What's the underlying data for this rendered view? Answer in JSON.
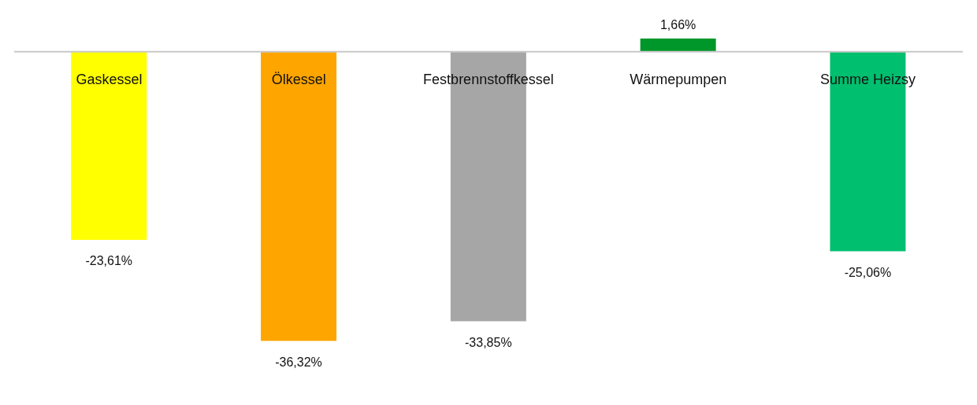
{
  "chart_data": {
    "type": "bar",
    "categories": [
      "Gaskessel",
      "Ölkessel",
      "Festbrennstoffkessel",
      "Wärmepumpen",
      "Summe Heizsy"
    ],
    "values": [
      -23.61,
      -36.32,
      -33.85,
      1.66,
      -25.06
    ],
    "value_labels": [
      "-23,61%",
      "-36,32%",
      "-33,85%",
      "1,66%",
      "-25,06%"
    ],
    "colors": [
      "#ffff00",
      "#ffa500",
      "#a6a6a6",
      "#00972a",
      "#00bf6f"
    ]
  }
}
